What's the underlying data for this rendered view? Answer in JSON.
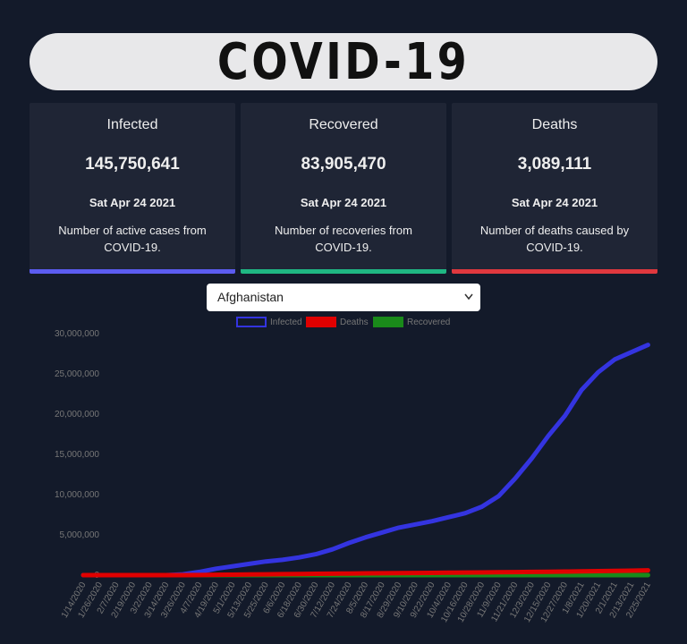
{
  "header": {
    "title": "COVID-19"
  },
  "cards": [
    {
      "title": "Infected",
      "value": "145,750,641",
      "date": "Sat Apr 24 2021",
      "description": "Number of active cases from COVID-19.",
      "color": "#5b5cf0"
    },
    {
      "title": "Recovered",
      "value": "83,905,470",
      "date": "Sat Apr 24 2021",
      "description": "Number of recoveries from COVID-19.",
      "color": "#1fb783"
    },
    {
      "title": "Deaths",
      "value": "3,089,111",
      "date": "Sat Apr 24 2021",
      "description": "Number of deaths caused by COVID-19.",
      "color": "#e0383e"
    }
  ],
  "selector": {
    "selected": "Afghanistan"
  },
  "chart_data": {
    "type": "line",
    "categories": [
      "1/14/2020",
      "1/26/2020",
      "2/7/2020",
      "2/19/2020",
      "3/2/2020",
      "3/14/2020",
      "3/26/2020",
      "4/7/2020",
      "4/19/2020",
      "5/1/2020",
      "5/13/2020",
      "5/25/2020",
      "6/6/2020",
      "6/18/2020",
      "6/30/2020",
      "7/12/2020",
      "7/24/2020",
      "8/5/2020",
      "8/17/2020",
      "8/29/2020",
      "9/10/2020",
      "9/22/2020",
      "10/4/2020",
      "10/16/2020",
      "10/28/2020",
      "11/9/2020",
      "11/21/2020",
      "12/3/2020",
      "12/15/2020",
      "12/27/2020",
      "1/8/2021",
      "1/20/2021",
      "2/1/2021",
      "2/13/2021",
      "2/25/2021"
    ],
    "series": [
      {
        "name": "Recovered",
        "color": "#1a8a1a",
        "values": [
          0,
          0,
          0,
          0,
          0,
          0,
          0,
          0,
          0,
          0,
          0,
          0,
          0,
          0,
          0,
          0,
          0,
          0,
          0,
          0,
          0,
          0,
          0,
          0,
          0,
          0,
          0,
          0,
          0,
          0,
          0,
          0,
          0,
          0,
          0
        ]
      },
      {
        "name": "Infected",
        "color": "#3434e0",
        "values": [
          0,
          0,
          0,
          0,
          0,
          0,
          100000,
          400000,
          800000,
          1100000,
          1400000,
          1700000,
          1900000,
          2200000,
          2600000,
          3200000,
          4000000,
          4700000,
          5300000,
          5900000,
          6300000,
          6700000,
          7200000,
          7700000,
          8500000,
          9800000,
          12000000,
          14500000,
          17300000,
          19800000,
          23000000,
          25200000,
          26800000,
          27700000,
          28600000
        ]
      },
      {
        "name": "Deaths",
        "color": "#e00000",
        "values": [
          0,
          0,
          0,
          0,
          0,
          0,
          5000,
          15000,
          40000,
          60000,
          80000,
          100000,
          120000,
          140000,
          160000,
          180000,
          200000,
          220000,
          235000,
          250000,
          265000,
          280000,
          300000,
          320000,
          340000,
          360000,
          380000,
          400000,
          420000,
          440000,
          470000,
          500000,
          530000,
          560000,
          600000
        ]
      }
    ],
    "legend_order": [
      "Infected",
      "Deaths",
      "Recovered"
    ],
    "ylim": [
      0,
      30000000
    ],
    "yticks": [
      {
        "value": 0,
        "label": "0"
      },
      {
        "value": 5000000,
        "label": "5,000,000"
      },
      {
        "value": 10000000,
        "label": "10,000,000"
      },
      {
        "value": 15000000,
        "label": "15,000,000"
      },
      {
        "value": 20000000,
        "label": "20,000,000"
      },
      {
        "value": 25000000,
        "label": "25,000,000"
      },
      {
        "value": 30000000,
        "label": "30,000,000"
      }
    ]
  }
}
